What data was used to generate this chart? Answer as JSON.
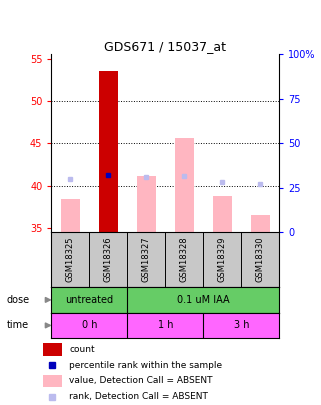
{
  "title": "GDS671 / 15037_at",
  "samples": [
    "GSM18325",
    "GSM18326",
    "GSM18327",
    "GSM18328",
    "GSM18329",
    "GSM18330"
  ],
  "value_absent": [
    38.5,
    null,
    41.2,
    45.6,
    38.8,
    36.5
  ],
  "count_present": [
    null,
    53.5,
    null,
    null,
    null,
    null
  ],
  "rank_absent": [
    40.8,
    null,
    41.0,
    41.2,
    40.4,
    40.2
  ],
  "rank_present": [
    null,
    41.3,
    null,
    null,
    null,
    null
  ],
  "ylim_left": [
    34.5,
    55.5
  ],
  "ylim_right": [
    0,
    100
  ],
  "yticks_left": [
    35,
    40,
    45,
    50,
    55
  ],
  "yticks_right": [
    0,
    25,
    50,
    75,
    100
  ],
  "ytick_labels_left": [
    "35",
    "40",
    "45",
    "50",
    "55"
  ],
  "ytick_labels_right": [
    "0",
    "25",
    "50",
    "75",
    "100%"
  ],
  "color_count": "#CC0000",
  "color_rank_present": "#0000BB",
  "color_value_absent": "#FFB6C1",
  "color_rank_absent": "#BBBBEE",
  "bar_bottom": 34.5,
  "bar_width": 0.5,
  "grid_lines": [
    40,
    45,
    50
  ],
  "dose_divider": 1.5,
  "time_dividers": [
    1.5,
    3.5
  ],
  "sample_bg": "#C8C8C8",
  "dose_bg": "#66CC66",
  "time_bg": "#FF66FF",
  "legend_items": [
    {
      "color": "#CC0000",
      "label": "count",
      "shape": "rect"
    },
    {
      "color": "#0000BB",
      "label": "percentile rank within the sample",
      "shape": "square"
    },
    {
      "color": "#FFB6C1",
      "label": "value, Detection Call = ABSENT",
      "shape": "rect"
    },
    {
      "color": "#BBBBEE",
      "label": "rank, Detection Call = ABSENT",
      "shape": "square"
    }
  ]
}
